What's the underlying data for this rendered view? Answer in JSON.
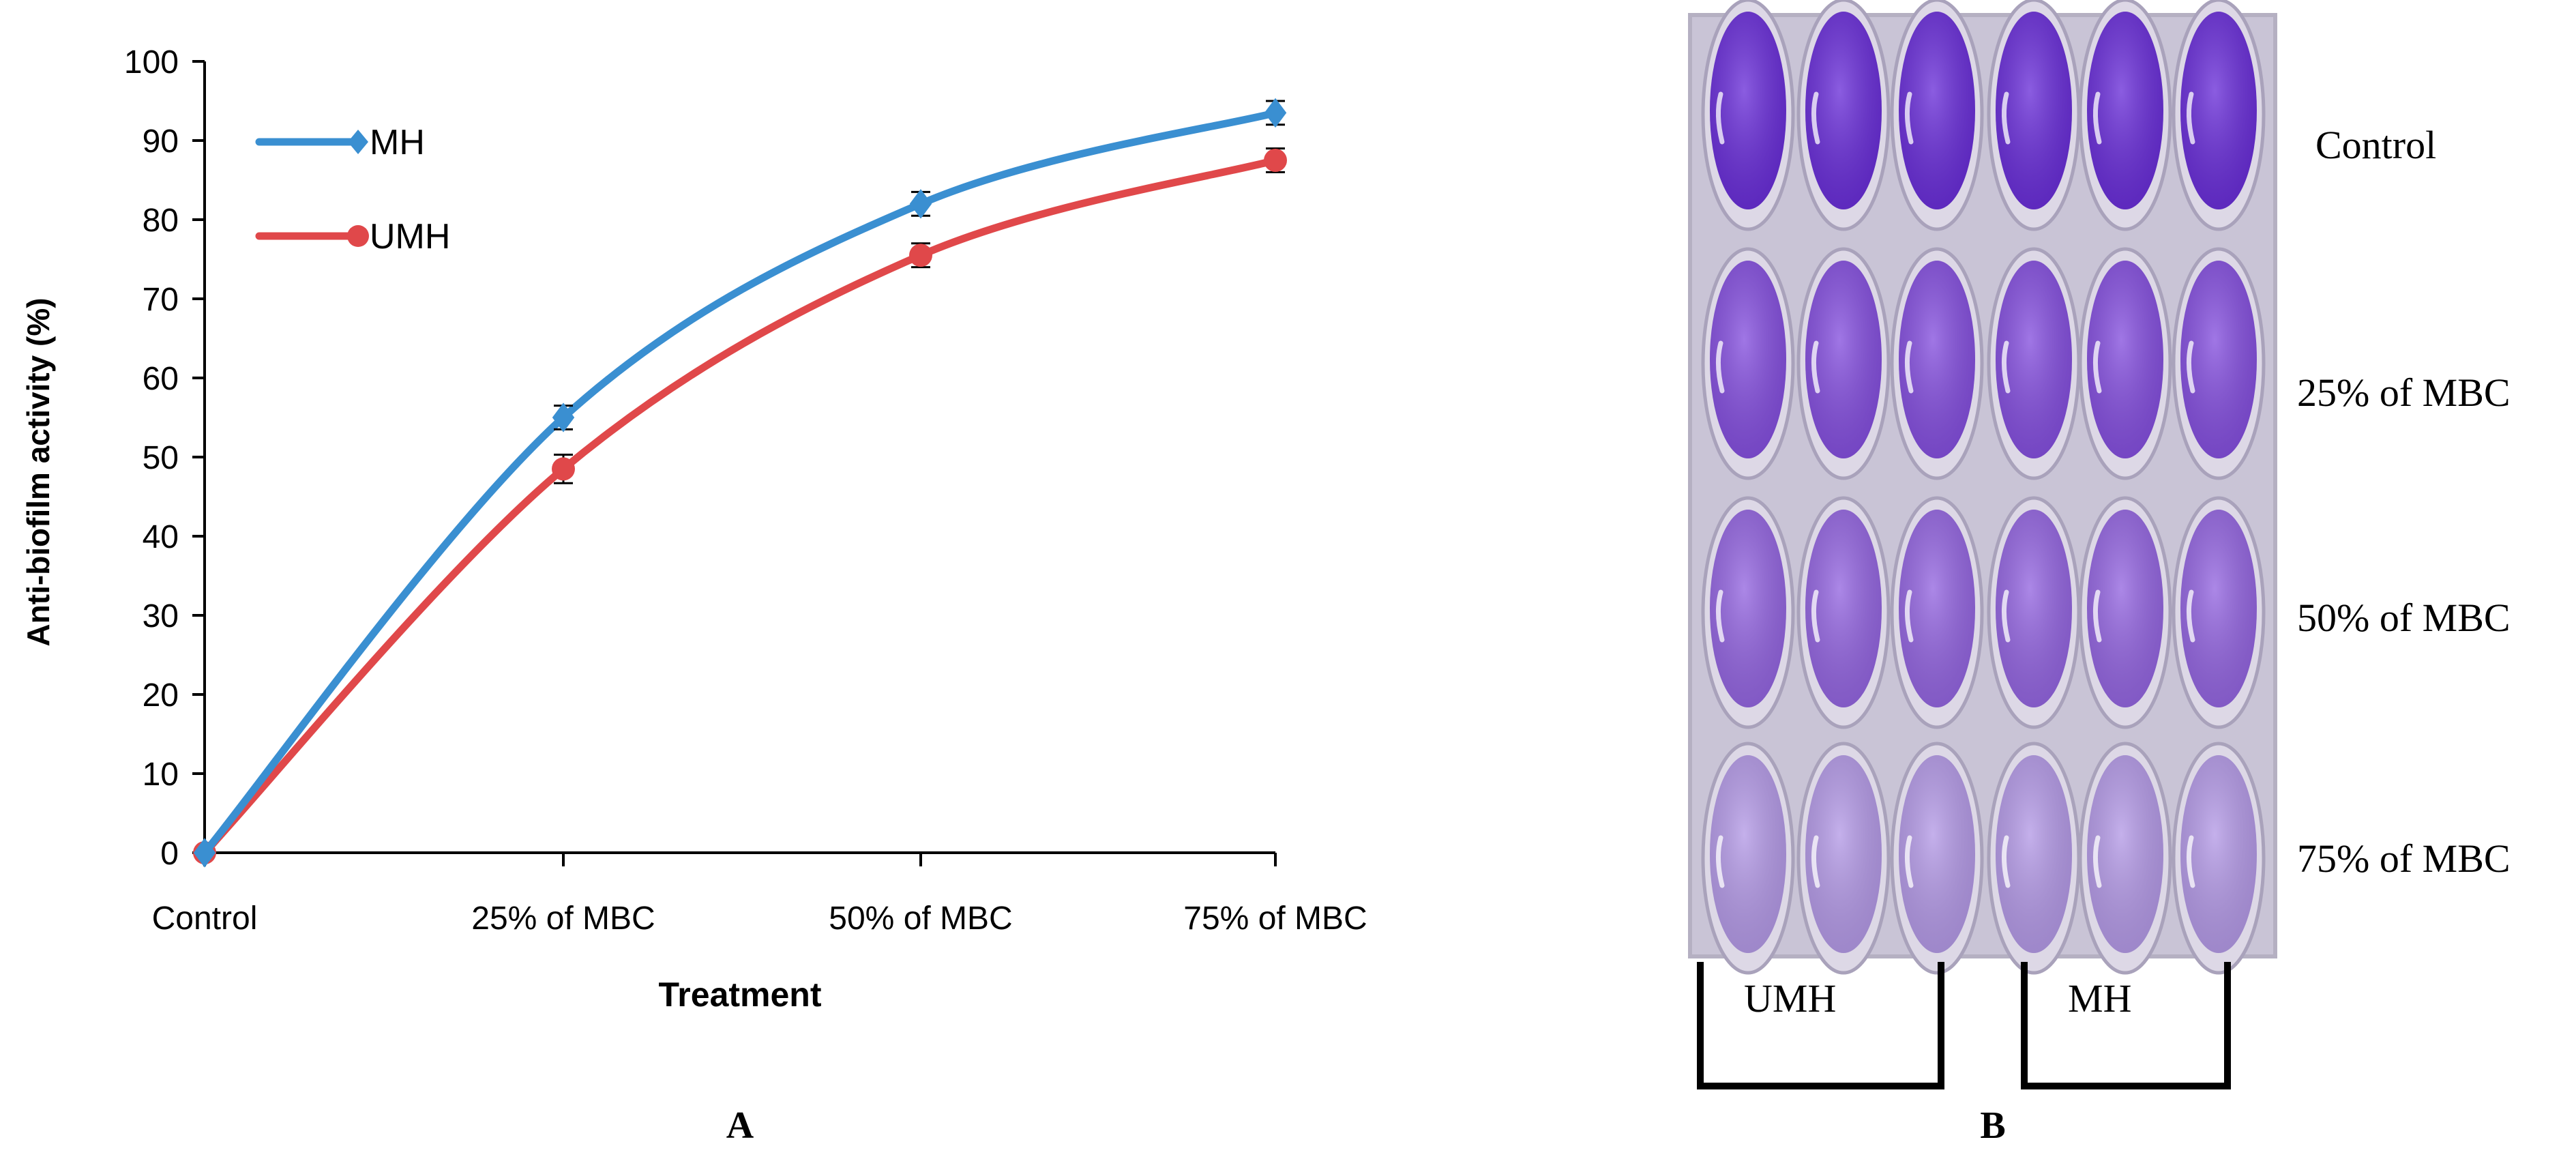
{
  "chart_data": {
    "type": "line",
    "categories": [
      "Control",
      "25% of MBC",
      "50% of MBC",
      "75% of MBC"
    ],
    "series": [
      {
        "name": "MH",
        "values": [
          0,
          55,
          82,
          93.5
        ],
        "errors": [
          0,
          1.5,
          1.5,
          1.5
        ],
        "color": "#3a8fd1",
        "marker": "diamond"
      },
      {
        "name": "UMH",
        "values": [
          0,
          48.5,
          75.5,
          87.5
        ],
        "errors": [
          0,
          1.8,
          1.5,
          1.5
        ],
        "color": "#e0484a",
        "marker": "circle"
      }
    ],
    "title": "",
    "xlabel": "Treatment",
    "ylabel": "Anti-biofilm activity (%)",
    "ylim": [
      0,
      100
    ],
    "yticks": [
      0,
      10,
      20,
      30,
      40,
      50,
      60,
      70,
      80,
      90,
      100
    ],
    "grid": false,
    "legend": "top-left",
    "smooth": true
  },
  "panels": {
    "a_label": "A",
    "b_label": "B"
  },
  "plate": {
    "row_labels": [
      "Control",
      "25% of MBC",
      "50% of MBC",
      "75% of MBC"
    ],
    "group_labels": [
      "UMH",
      "MH"
    ],
    "columns": 6,
    "rows": 4,
    "row_well_colors": [
      "#6a2fd8",
      "#8550de",
      "#9466e0",
      "#b49ae6"
    ],
    "plate_background": "#c9c4d6"
  }
}
